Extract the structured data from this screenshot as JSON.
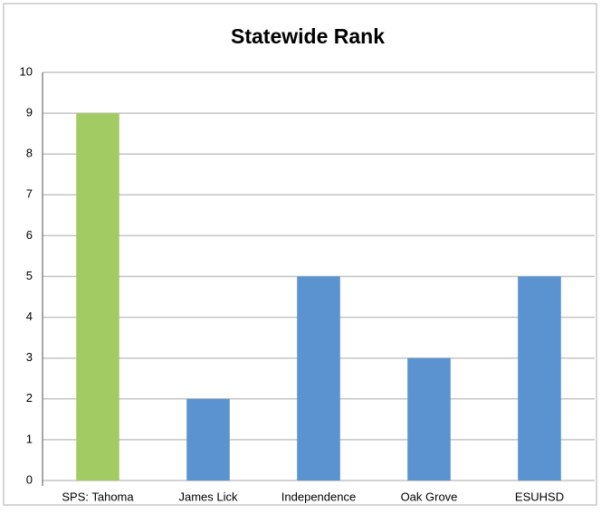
{
  "chart_data": {
    "type": "bar",
    "title": "Statewide Rank",
    "categories": [
      "SPS: Tahoma",
      "James Lick",
      "Independence",
      "Oak Grove",
      "ESUHSD"
    ],
    "values": [
      9,
      2,
      5,
      3,
      5
    ],
    "colors": [
      "#a2cb64",
      "#5a93cf",
      "#5a93cf",
      "#5a93cf",
      "#5a93cf"
    ],
    "ylim": [
      0,
      10
    ],
    "yticks": [
      0,
      1,
      2,
      3,
      4,
      5,
      6,
      7,
      8,
      9,
      10
    ],
    "grid": true
  }
}
